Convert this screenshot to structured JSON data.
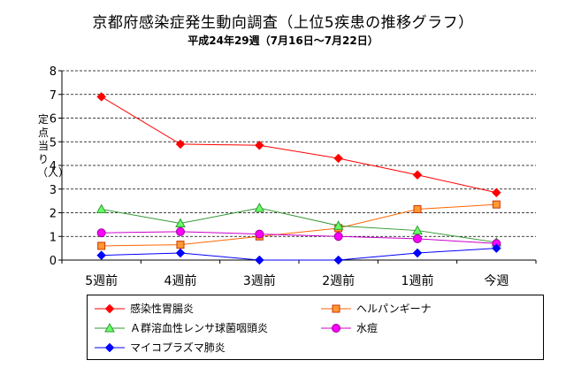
{
  "chart_data": {
    "type": "line",
    "title": "京都府感染症発生動向調査（上位5疾患の推移グラフ）",
    "subtitle": "平成24年29週（7月16日～7月22日）",
    "ylabel": "定点当り（人）",
    "xlabel": "",
    "categories": [
      "5週前",
      "4週前",
      "3週前",
      "2週前",
      "1週前",
      "今週"
    ],
    "y_ticks": [
      "0",
      "1",
      "2",
      "3",
      "4",
      "5",
      "6",
      "7",
      "8"
    ],
    "ylim": [
      0,
      8
    ],
    "grid": "horizontal dashed",
    "legend_position": "bottom",
    "series": [
      {
        "name": "感染性胃腸炎",
        "values": [
          6.9,
          4.9,
          4.85,
          4.3,
          3.6,
          2.85
        ],
        "color": "#ff0000",
        "marker": "diamond"
      },
      {
        "name": "ヘルパンギーナ",
        "values": [
          0.6,
          0.65,
          1.0,
          1.35,
          2.15,
          2.35
        ],
        "color": "#ff6600",
        "marker": "square"
      },
      {
        "name": "Ａ群溶血性レンサ球菌咽頭炎",
        "values": [
          2.15,
          1.55,
          2.2,
          1.45,
          1.25,
          0.75
        ],
        "color": "#339933",
        "marker": "triangle"
      },
      {
        "name": "水痘",
        "values": [
          1.15,
          1.2,
          1.1,
          1.0,
          0.9,
          0.7
        ],
        "color": "#cc00cc",
        "marker": "circle"
      },
      {
        "name": "マイコプラズマ肺炎",
        "values": [
          0.2,
          0.3,
          0.0,
          0.0,
          0.3,
          0.5
        ],
        "color": "#0000ff",
        "marker": "diamond"
      }
    ]
  }
}
